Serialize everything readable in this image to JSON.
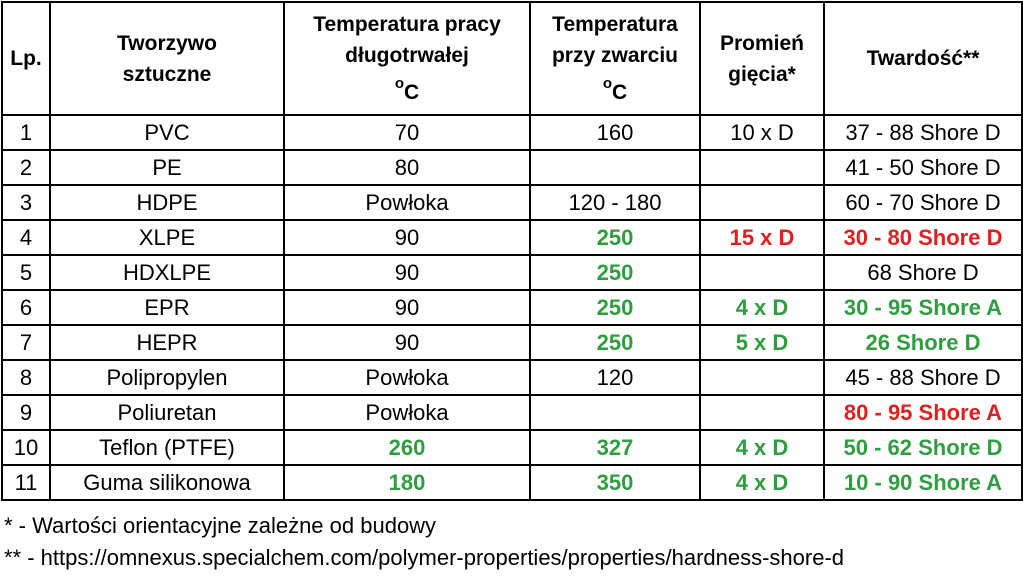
{
  "headers": [
    {
      "lines": [
        "Lp."
      ]
    },
    {
      "lines": [
        "Tworzywo",
        "sztuczne"
      ]
    },
    {
      "lines": [
        "Temperatura pracy",
        "długotrwałej"
      ],
      "unit": "C"
    },
    {
      "lines": [
        "Temperatura",
        "przy zwarciu"
      ],
      "unit": "C"
    },
    {
      "lines": [
        "Promień",
        "gięcia*"
      ]
    },
    {
      "lines": [
        "Twardość**"
      ]
    }
  ],
  "degree_symbol": "o",
  "rows": [
    {
      "lp": "1",
      "material": "PVC",
      "work_temp": {
        "text": "70",
        "style": "black"
      },
      "short_temp": {
        "text": "160",
        "style": "black"
      },
      "bend_radius": {
        "text": "10 x D",
        "style": "black"
      },
      "hardness": {
        "text": "37 - 88 Shore D",
        "style": "black"
      }
    },
    {
      "lp": "2",
      "material": "PE",
      "work_temp": {
        "text": "80",
        "style": "black"
      },
      "short_temp": {
        "text": "",
        "style": "black"
      },
      "bend_radius": {
        "text": "",
        "style": "black"
      },
      "hardness": {
        "text": "41 - 50 Shore D",
        "style": "black"
      }
    },
    {
      "lp": "3",
      "material": "HDPE",
      "work_temp": {
        "text": "Powłoka",
        "style": "black"
      },
      "short_temp": {
        "text": "120 - 180",
        "style": "black"
      },
      "bend_radius": {
        "text": "",
        "style": "black"
      },
      "hardness": {
        "text": "60 - 70 Shore D",
        "style": "black"
      }
    },
    {
      "lp": "4",
      "material": "XLPE",
      "work_temp": {
        "text": "90",
        "style": "black"
      },
      "short_temp": {
        "text": "250",
        "style": "green"
      },
      "bend_radius": {
        "text": "15 x D",
        "style": "red"
      },
      "hardness": {
        "text": "30 - 80 Shore D",
        "style": "red"
      }
    },
    {
      "lp": "5",
      "material": "HDXLPE",
      "work_temp": {
        "text": "90",
        "style": "black"
      },
      "short_temp": {
        "text": "250",
        "style": "green"
      },
      "bend_radius": {
        "text": "",
        "style": "black"
      },
      "hardness": {
        "text": "68 Shore D",
        "style": "black"
      }
    },
    {
      "lp": "6",
      "material": "EPR",
      "work_temp": {
        "text": "90",
        "style": "black"
      },
      "short_temp": {
        "text": "250",
        "style": "green"
      },
      "bend_radius": {
        "text": "4 x D",
        "style": "green"
      },
      "hardness": {
        "text": "30 - 95 Shore A",
        "style": "green"
      }
    },
    {
      "lp": "7",
      "material": "HEPR",
      "work_temp": {
        "text": "90",
        "style": "black"
      },
      "short_temp": {
        "text": "250",
        "style": "green"
      },
      "bend_radius": {
        "text": "5 x D",
        "style": "green"
      },
      "hardness": {
        "text": "26 Shore D",
        "style": "green"
      }
    },
    {
      "lp": "8",
      "material": "Polipropylen",
      "work_temp": {
        "text": "Powłoka",
        "style": "black"
      },
      "short_temp": {
        "text": "120",
        "style": "black"
      },
      "bend_radius": {
        "text": "",
        "style": "black"
      },
      "hardness": {
        "text": "45 - 88 Shore D",
        "style": "black"
      }
    },
    {
      "lp": "9",
      "material": "Poliuretan",
      "work_temp": {
        "text": "Powłoka",
        "style": "black"
      },
      "short_temp": {
        "text": "",
        "style": "black"
      },
      "bend_radius": {
        "text": "",
        "style": "black"
      },
      "hardness": {
        "text": "80 - 95 Shore A",
        "style": "red"
      }
    },
    {
      "lp": "10",
      "material": "Teflon (PTFE)",
      "work_temp": {
        "text": "260",
        "style": "green"
      },
      "short_temp": {
        "text": "327",
        "style": "green"
      },
      "bend_radius": {
        "text": "4 x D",
        "style": "green"
      },
      "hardness": {
        "text": "50 - 62 Shore D",
        "style": "green"
      }
    },
    {
      "lp": "11",
      "material": "Guma silikonowa",
      "work_temp": {
        "text": "180",
        "style": "green"
      },
      "short_temp": {
        "text": "350",
        "style": "green"
      },
      "bend_radius": {
        "text": "4 x D",
        "style": "green"
      },
      "hardness": {
        "text": "10 - 90 Shore A",
        "style": "green"
      }
    }
  ],
  "notes": [
    "* - Wartości orientacyjne zależne od budowy",
    "** - https://omnexus.specialchem.com/polymer-properties/properties/hardness-shore-d"
  ],
  "colors": {
    "green": "#2e9e3f",
    "red": "#e02020",
    "black": "#000000"
  }
}
